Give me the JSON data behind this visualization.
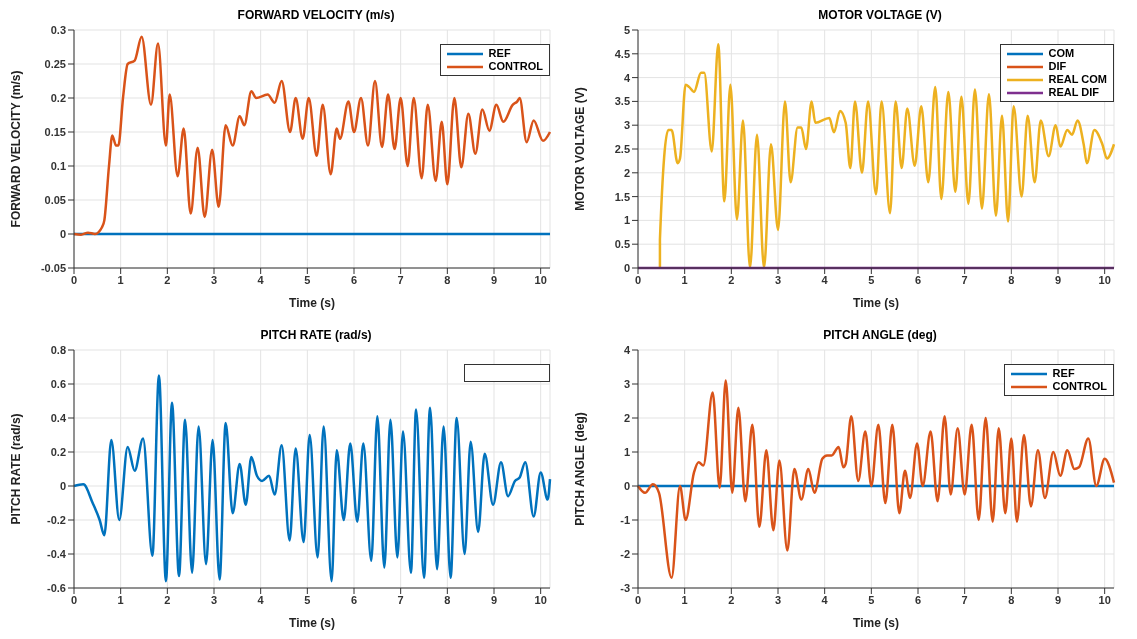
{
  "chart_data": [
    {
      "type": "line",
      "title": "FORWARD VELOCITY (m/s)",
      "xlabel": "Time (s)",
      "ylabel": "FORWARD VELOCITY (m/s)",
      "xlim": [
        0,
        10.2
      ],
      "xticks": [
        0,
        1,
        2,
        3,
        4,
        5,
        6,
        7,
        8,
        9,
        10
      ],
      "ylim": [
        -0.05,
        0.3
      ],
      "yticks": [
        -0.05,
        0,
        0.05,
        0.1,
        0.15,
        0.2,
        0.25,
        0.3
      ],
      "grid": true,
      "legend": "top right",
      "marker": "none",
      "line_style": "solid",
      "series": [
        {
          "name": "REF",
          "color": "#0072bd",
          "x": [
            0,
            10.2
          ],
          "values": [
            0,
            0
          ]
        },
        {
          "name": "CONTROL",
          "color": "#d95319",
          "x": [
            0,
            0.15,
            0.3,
            0.45,
            0.6,
            0.65,
            0.75,
            0.82,
            0.9,
            0.95,
            1.05,
            1.15,
            1.3,
            1.45,
            1.65,
            1.8,
            1.97,
            2.05,
            2.22,
            2.35,
            2.5,
            2.65,
            2.8,
            2.96,
            3.1,
            3.25,
            3.4,
            3.55,
            3.65,
            3.8,
            3.9,
            4.15,
            4.3,
            4.45,
            4.63,
            4.75,
            4.9,
            5.03,
            5.2,
            5.33,
            5.5,
            5.63,
            5.7,
            5.88,
            6.0,
            6.15,
            6.3,
            6.45,
            6.6,
            6.73,
            6.87,
            7.0,
            7.15,
            7.28,
            7.45,
            7.58,
            7.75,
            7.88,
            8.0,
            8.15,
            8.3,
            8.45,
            8.6,
            8.75,
            8.9,
            9.05,
            9.2,
            9.4,
            9.5,
            9.55,
            9.7,
            9.85,
            10.05,
            10.2
          ],
          "values": [
            0,
            -0.001,
            0.002,
            0,
            0.01,
            0.02,
            0.1,
            0.145,
            0.13,
            0.13,
            0.2,
            0.25,
            0.255,
            0.29,
            0.19,
            0.28,
            0.13,
            0.205,
            0.085,
            0.155,
            0.03,
            0.127,
            0.025,
            0.124,
            0.04,
            0.16,
            0.13,
            0.173,
            0.16,
            0.21,
            0.2,
            0.205,
            0.193,
            0.225,
            0.15,
            0.2,
            0.14,
            0.2,
            0.115,
            0.19,
            0.088,
            0.155,
            0.14,
            0.195,
            0.15,
            0.2,
            0.13,
            0.225,
            0.128,
            0.205,
            0.125,
            0.2,
            0.1,
            0.2,
            0.082,
            0.19,
            0.078,
            0.165,
            0.073,
            0.2,
            0.098,
            0.177,
            0.118,
            0.183,
            0.152,
            0.19,
            0.165,
            0.19,
            0.195,
            0.2,
            0.135,
            0.167,
            0.137,
            0.15
          ]
        }
      ]
    },
    {
      "type": "line",
      "title": "MOTOR VOLTAGE (V)",
      "xlabel": "Time (s)",
      "ylabel": "MOTOR VOLTAGE (V)",
      "xlim": [
        0,
        10.2
      ],
      "xticks": [
        0,
        1,
        2,
        3,
        4,
        5,
        6,
        7,
        8,
        9,
        10
      ],
      "ylim": [
        0,
        5
      ],
      "yticks": [
        0,
        0.5,
        1,
        1.5,
        2,
        2.5,
        3,
        3.5,
        4,
        4.5,
        5
      ],
      "grid": true,
      "legend": "top right",
      "marker": "none",
      "line_style": "solid",
      "series": [
        {
          "name": "COM",
          "color": "#0072bd"
        },
        {
          "name": "DIF",
          "color": "#d95319"
        },
        {
          "name": "REAL COM",
          "color": "#edb120",
          "x": [
            0.47,
            0.47,
            0.65,
            0.72,
            0.85,
            0.9,
            1.02,
            1.1,
            1.2,
            1.35,
            1.42,
            1.58,
            1.72,
            1.85,
            1.98,
            2.12,
            2.25,
            2.4,
            2.55,
            2.7,
            2.85,
            3.0,
            3.15,
            3.27,
            3.42,
            3.5,
            3.6,
            3.72,
            3.8,
            4.1,
            4.2,
            4.33,
            4.45,
            4.55,
            4.65,
            4.8,
            4.93,
            5.1,
            5.22,
            5.4,
            5.52,
            5.65,
            5.77,
            5.93,
            6.07,
            6.22,
            6.37,
            6.5,
            6.65,
            6.8,
            6.93,
            7.08,
            7.22,
            7.37,
            7.52,
            7.67,
            7.8,
            7.93,
            8.05,
            8.22,
            8.35,
            8.5,
            8.63,
            8.8,
            8.95,
            9.05,
            9.2,
            9.3,
            9.42,
            9.55,
            9.62,
            9.78,
            9.95,
            10.05,
            10.2
          ],
          "values": [
            0,
            0.6,
            2.9,
            2.9,
            2.2,
            2.3,
            3.85,
            3.8,
            3.7,
            4.1,
            4.1,
            2.45,
            4.7,
            1.4,
            3.85,
            1.02,
            3.1,
            0,
            2.8,
            0,
            2.6,
            0.8,
            3.5,
            1.8,
            2.95,
            2.95,
            2.5,
            3.5,
            3.05,
            3.15,
            2.85,
            3.3,
            3.05,
            2.1,
            3.5,
            2.0,
            3.5,
            1.55,
            3.5,
            1.15,
            3.5,
            2.1,
            3.35,
            2.15,
            3.4,
            1.8,
            3.8,
            1.45,
            3.7,
            1.6,
            3.6,
            1.35,
            3.75,
            1.25,
            3.65,
            1.1,
            3.2,
            0.98,
            3.4,
            1.5,
            3.2,
            1.8,
            3.1,
            2.35,
            3.0,
            2.55,
            2.9,
            2.8,
            3.1,
            2.6,
            2.2,
            2.9,
            2.6,
            2.3,
            2.6
          ]
        },
        {
          "name": "REAL DIF",
          "color": "#7e2f8e",
          "x": [
            0,
            10.2
          ],
          "values": [
            0,
            0
          ]
        }
      ]
    },
    {
      "type": "line",
      "title": "PITCH RATE (rad/s)",
      "xlabel": "Time (s)",
      "ylabel": "PITCH RATE (rad/s)",
      "xlim": [
        0,
        10.2
      ],
      "xticks": [
        0,
        1,
        2,
        3,
        4,
        5,
        6,
        7,
        8,
        9,
        10
      ],
      "ylim": [
        -0.6,
        0.8
      ],
      "yticks": [
        -0.6,
        -0.4,
        -0.2,
        0,
        0.2,
        0.4,
        0.6,
        0.8
      ],
      "grid": true,
      "marker": "none",
      "line_style": "solid",
      "series": [
        {
          "color": "#0072bd",
          "x": [
            0,
            0.2,
            0.4,
            0.55,
            0.65,
            0.8,
            0.97,
            1.15,
            1.3,
            1.48,
            1.68,
            1.82,
            1.97,
            2.1,
            2.25,
            2.38,
            2.53,
            2.67,
            2.83,
            2.97,
            3.12,
            3.25,
            3.4,
            3.55,
            3.68,
            3.8,
            3.92,
            4.03,
            4.18,
            4.3,
            4.45,
            4.62,
            4.75,
            4.92,
            5.05,
            5.22,
            5.35,
            5.52,
            5.63,
            5.78,
            5.92,
            6.07,
            6.2,
            6.37,
            6.5,
            6.65,
            6.78,
            6.93,
            7.05,
            7.22,
            7.33,
            7.5,
            7.63,
            7.78,
            7.92,
            8.07,
            8.2,
            8.37,
            8.5,
            8.66,
            8.8,
            8.98,
            9.15,
            9.3,
            9.45,
            9.55,
            9.67,
            9.85,
            10.0,
            10.15,
            10.2
          ],
          "values": [
            0,
            0.01,
            -0.1,
            -0.2,
            -0.29,
            0.27,
            -0.2,
            0.23,
            0.09,
            0.28,
            -0.41,
            0.65,
            -0.56,
            0.49,
            -0.53,
            0.39,
            -0.51,
            0.35,
            -0.46,
            0.27,
            -0.55,
            0.37,
            -0.16,
            0.13,
            -0.11,
            0.17,
            0.06,
            0.03,
            0.06,
            -0.05,
            0.24,
            -0.32,
            0.22,
            -0.33,
            0.3,
            -0.42,
            0.35,
            -0.56,
            0.21,
            -0.2,
            0.25,
            -0.21,
            0.25,
            -0.44,
            0.41,
            -0.48,
            0.39,
            -0.42,
            0.32,
            -0.51,
            0.45,
            -0.54,
            0.46,
            -0.49,
            0.35,
            -0.54,
            0.4,
            -0.4,
            0.26,
            -0.27,
            0.19,
            -0.11,
            0.14,
            -0.06,
            0.03,
            0.05,
            0.14,
            -0.18,
            0.08,
            -0.08,
            0.04
          ]
        }
      ]
    },
    {
      "type": "line",
      "title": "PITCH ANGLE (deg)",
      "xlabel": "Time (s)",
      "ylabel": "PITCH ANGLE (deg)",
      "xlim": [
        0,
        10.2
      ],
      "xticks": [
        0,
        1,
        2,
        3,
        4,
        5,
        6,
        7,
        8,
        9,
        10
      ],
      "ylim": [
        -3,
        4
      ],
      "yticks": [
        -3,
        -2,
        -1,
        0,
        1,
        2,
        3,
        4
      ],
      "grid": true,
      "legend": "top right",
      "marker": "none",
      "line_style": "solid",
      "series": [
        {
          "name": "REF",
          "color": "#0072bd",
          "x": [
            0,
            10.2
          ],
          "values": [
            0,
            0
          ]
        },
        {
          "name": "CONTROL",
          "color": "#d95319",
          "x": [
            0,
            0.15,
            0.32,
            0.45,
            0.72,
            0.9,
            1.02,
            1.2,
            1.3,
            1.4,
            1.6,
            1.75,
            1.88,
            2.02,
            2.15,
            2.3,
            2.45,
            2.6,
            2.75,
            2.9,
            3.03,
            3.2,
            3.35,
            3.5,
            3.65,
            3.78,
            3.95,
            4.05,
            4.15,
            4.3,
            4.4,
            4.45,
            4.57,
            4.72,
            4.87,
            5.0,
            5.15,
            5.3,
            5.45,
            5.6,
            5.72,
            5.83,
            5.98,
            6.1,
            6.27,
            6.42,
            6.57,
            6.7,
            6.85,
            7.0,
            7.15,
            7.3,
            7.45,
            7.6,
            7.73,
            7.87,
            8.0,
            8.12,
            8.27,
            8.42,
            8.57,
            8.72,
            8.9,
            9.05,
            9.2,
            9.35,
            9.45,
            9.65,
            9.82,
            10.0,
            10.2
          ],
          "values": [
            0,
            -0.2,
            0.05,
            -0.2,
            -2.7,
            0,
            -1.0,
            0.4,
            0.7,
            0.6,
            2.75,
            -0.05,
            3.1,
            -0.2,
            2.3,
            -0.45,
            1.8,
            -1.2,
            1.05,
            -1.3,
            0.75,
            -1.9,
            0.5,
            -0.4,
            0.5,
            -0.2,
            0.8,
            0.9,
            0.9,
            1.15,
            0.55,
            0.65,
            2.05,
            0.15,
            1.6,
            0,
            1.8,
            -0.5,
            1.8,
            -0.8,
            0.45,
            -0.35,
            1.25,
            0,
            1.6,
            -0.45,
            2.05,
            -0.25,
            1.7,
            -0.25,
            1.8,
            -1.0,
            2.0,
            -1.05,
            1.7,
            -0.8,
            1.4,
            -1.05,
            1.5,
            -0.6,
            1.05,
            -0.35,
            1.0,
            0.3,
            1.05,
            0.5,
            0.55,
            1.4,
            0,
            0.8,
            0.1
          ]
        }
      ]
    }
  ]
}
